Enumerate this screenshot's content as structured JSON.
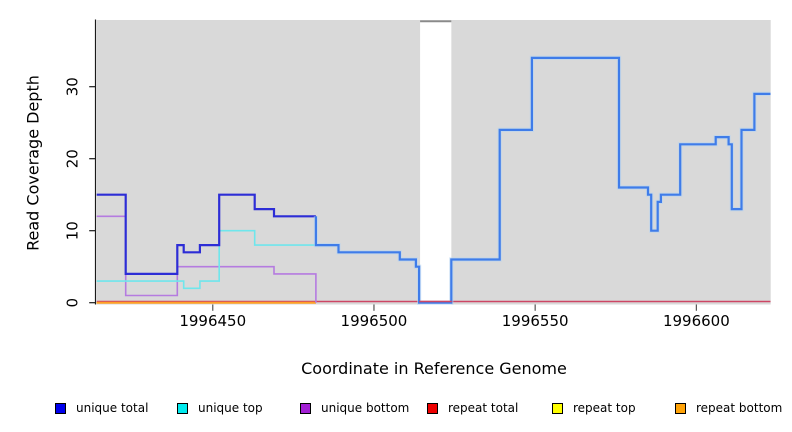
{
  "chart_data": {
    "type": "step-line",
    "title": "",
    "xlabel": "Coordinate in Reference Genome",
    "ylabel": "Read Coverage Depth",
    "x_ticks": [
      1996450,
      1996500,
      1996550,
      1996600
    ],
    "y_ticks": [
      0,
      10,
      20,
      30
    ],
    "x_range": [
      1996414,
      1996623
    ],
    "y_range": [
      0,
      39
    ],
    "grid": false,
    "plot_bg": "#d9d9d9",
    "no_data_gap": {
      "from": 1996514.3,
      "to": 1996524,
      "fill": "#ffffff",
      "top_edge_color": "#8a8a8a"
    },
    "series": [
      {
        "name": "unique total",
        "line_color": "#2d2dd6",
        "line_color_after_split": "#3f7ce9",
        "split_x": 1996482,
        "halo_color": "#b5d4f1",
        "width": 2.2,
        "draw_order": 6,
        "points": [
          [
            1996414,
            15
          ],
          [
            1996423,
            4
          ],
          [
            1996439,
            8
          ],
          [
            1996441,
            7
          ],
          [
            1996446,
            8
          ],
          [
            1996452,
            15
          ],
          [
            1996463,
            13
          ],
          [
            1996469,
            12
          ],
          [
            1996482,
            8
          ],
          [
            1996489,
            7
          ],
          [
            1996508,
            6
          ],
          [
            1996513,
            5
          ],
          [
            1996514,
            0
          ],
          [
            1996524,
            6
          ],
          [
            1996539,
            24
          ],
          [
            1996549,
            34
          ],
          [
            1996576,
            16
          ],
          [
            1996585,
            15
          ],
          [
            1996586,
            10
          ],
          [
            1996588,
            14
          ],
          [
            1996589,
            15
          ],
          [
            1996595,
            22
          ],
          [
            1996606,
            23
          ],
          [
            1996610,
            22
          ],
          [
            1996611,
            13
          ],
          [
            1996614,
            24
          ],
          [
            1996618,
            29
          ],
          [
            1996623,
            29
          ]
        ]
      },
      {
        "name": "unique top",
        "line_color": "#6fe6ec",
        "width": 1.6,
        "draw_order": 5,
        "points": [
          [
            1996414,
            3
          ],
          [
            1996441,
            2
          ],
          [
            1996446,
            3
          ],
          [
            1996452,
            10
          ],
          [
            1996463,
            8
          ],
          [
            1996489,
            8
          ]
        ]
      },
      {
        "name": "unique bottom",
        "line_color": "#b57be0",
        "width": 1.6,
        "draw_order": 4,
        "points": [
          [
            1996414,
            12
          ],
          [
            1996423,
            1
          ],
          [
            1996439,
            5
          ],
          [
            1996469,
            4
          ],
          [
            1996482,
            0
          ]
        ]
      },
      {
        "name": "repeat total",
        "line_color": "#cd4664",
        "width": 1.5,
        "draw_order": 1,
        "y_offset": -1.2,
        "crosses_gap": true,
        "points": [
          [
            1996414,
            0
          ],
          [
            1996623,
            0
          ]
        ]
      },
      {
        "name": "repeat top",
        "line_color": "#ffdd00",
        "width": 1.4,
        "draw_order": 2,
        "points": [
          [
            1996414,
            0
          ],
          [
            1996482,
            0
          ]
        ]
      },
      {
        "name": "repeat bottom",
        "line_color": "#ffa125",
        "width": 2,
        "draw_order": 3,
        "points": [
          [
            1996414,
            0
          ],
          [
            1996482,
            0
          ]
        ]
      }
    ]
  },
  "legend": {
    "items": [
      {
        "label": "unique total",
        "color": "#0000ee"
      },
      {
        "label": "unique top",
        "color": "#00eaee"
      },
      {
        "label": "unique bottom",
        "color": "#a21fd4"
      },
      {
        "label": "repeat total",
        "color": "#ee0000"
      },
      {
        "label": "repeat top",
        "color": "#ffff00"
      },
      {
        "label": "repeat bottom",
        "color": "#ffa308"
      }
    ]
  }
}
